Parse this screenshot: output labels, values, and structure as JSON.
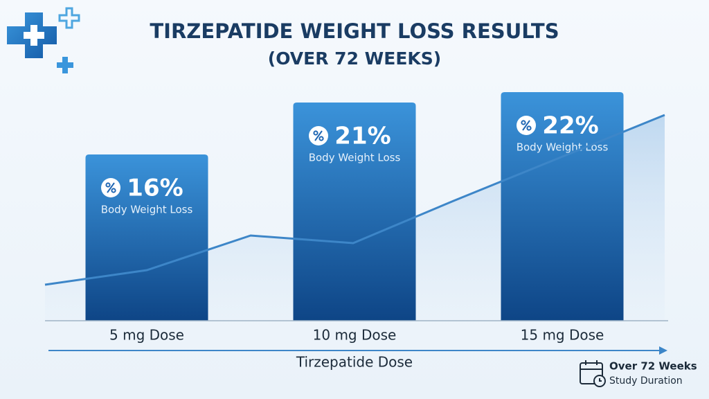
{
  "chart_data": {
    "type": "bar",
    "title": "TIRZEPATIDE WEIGHT LOSS RESULTS",
    "subtitle": "(OVER 72 WEEKS)",
    "categories": [
      "5 mg Dose",
      "10 mg Dose",
      "15 mg Dose"
    ],
    "values": [
      16,
      21,
      22
    ],
    "value_labels": [
      "16%",
      "21%",
      "22%"
    ],
    "bar_labels": [
      "Body Weight Loss",
      "Body Weight Loss",
      "Body Weight Loss"
    ],
    "color": "#1f66b3",
    "x_label": "Tirzepatide Dose",
    "annotation": {
      "title": "Over 72 Weeks",
      "text": "Study Duration"
    }
  }
}
